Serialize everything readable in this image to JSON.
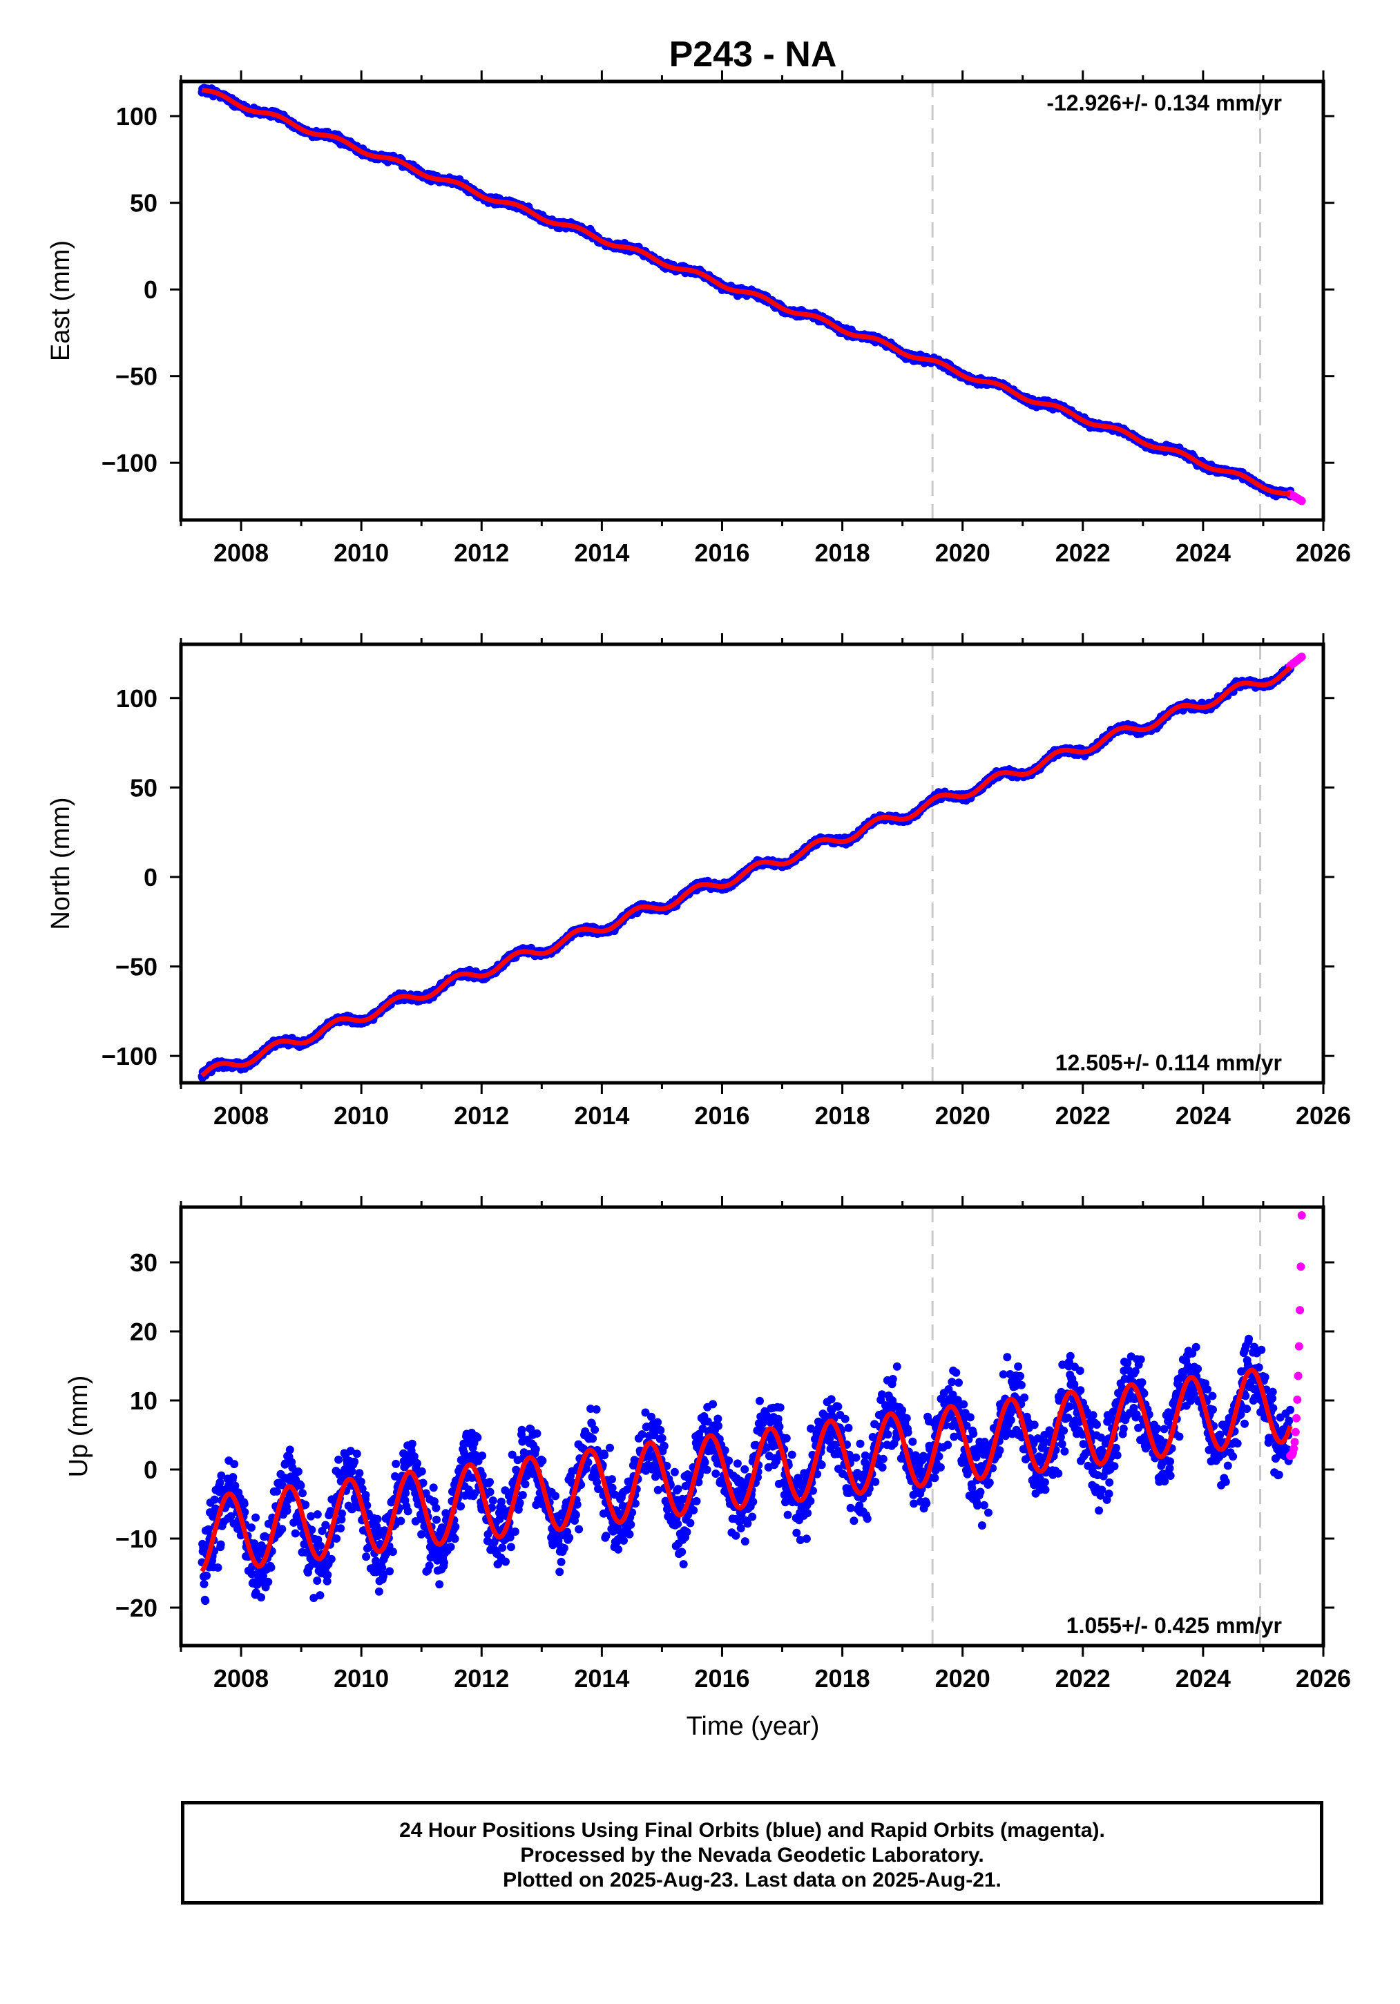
{
  "title": "P243 - NA",
  "xlabel": "Time (year)",
  "x_ticks": [
    "2008",
    "2010",
    "2012",
    "2014",
    "2016",
    "2018",
    "2020",
    "2022",
    "2024",
    "2026"
  ],
  "colors": {
    "final_orbits": "#0000ff",
    "rapid_orbits": "#ff00ff",
    "model": "#ff0000",
    "event_lines": "#c8c8c8"
  },
  "footer": {
    "line1": "24 Hour Positions Using Final Orbits (blue) and Rapid Orbits (magenta).",
    "line2": "Processed by the Nevada Geodetic Laboratory.",
    "line3": "Plotted on 2025-Aug-23. Last data on 2025-Aug-21."
  },
  "chart_data": [
    {
      "type": "scatter",
      "component": "east",
      "ylabel": "East (mm)",
      "velocity_label": "-12.926+/- 0.134 mm/yr",
      "xlim": [
        2007.0,
        2026.0
      ],
      "ylim": [
        -133,
        120
      ],
      "y_ticks": [
        "100",
        "50",
        "0",
        "−50",
        "−100"
      ],
      "y_tick_values": [
        100,
        50,
        0,
        -50,
        -100
      ],
      "event_lines_x": [
        2019.5,
        2024.95
      ],
      "model": {
        "start_year": 2007.35,
        "start_value": 115,
        "rate_mm_per_yr": -12.926,
        "seasonal_amplitude": 1.5
      },
      "data_span": [
        2007.35,
        2025.45
      ],
      "noise_mm": 1.5,
      "rapid_span": [
        2025.45,
        2025.64
      ],
      "rapid_values": [
        -118,
        -122
      ]
    },
    {
      "type": "scatter",
      "component": "north",
      "ylabel": "North (mm)",
      "velocity_label": "12.505+/- 0.114 mm/yr",
      "xlim": [
        2007.0,
        2026.0
      ],
      "ylim": [
        -115,
        130
      ],
      "y_ticks": [
        "100",
        "50",
        "0",
        "−50",
        "−100"
      ],
      "y_tick_values": [
        100,
        50,
        0,
        -50,
        -100
      ],
      "event_lines_x": [
        2019.5,
        2024.95
      ],
      "model": {
        "start_year": 2007.35,
        "start_value": -111,
        "rate_mm_per_yr": 12.505,
        "seasonal_amplitude": 3
      },
      "data_span": [
        2007.35,
        2025.45
      ],
      "noise_mm": 1.5,
      "rapid_span": [
        2025.45,
        2025.64
      ],
      "rapid_values": [
        118,
        123
      ]
    },
    {
      "type": "scatter",
      "component": "up",
      "ylabel": "Up (mm)",
      "velocity_label": "1.055+/- 0.425 mm/yr",
      "xlim": [
        2007.0,
        2026.0
      ],
      "ylim": [
        -25.5,
        38
      ],
      "y_ticks": [
        "30",
        "20",
        "10",
        "0",
        "−10",
        "−20"
      ],
      "y_tick_values": [
        30,
        20,
        10,
        0,
        -10,
        -20
      ],
      "event_lines_x": [
        2019.5,
        2024.95
      ],
      "model": {
        "start_year": 2007.35,
        "start_value": -9.5,
        "rate_mm_per_yr": 1.055,
        "seasonal_amplitude": 5.5
      },
      "data_span": [
        2007.35,
        2025.45
      ],
      "noise_mm": 4.5,
      "rapid_span": [
        2025.45,
        2025.64
      ],
      "rapid_values": [
        2,
        36.8
      ]
    }
  ]
}
